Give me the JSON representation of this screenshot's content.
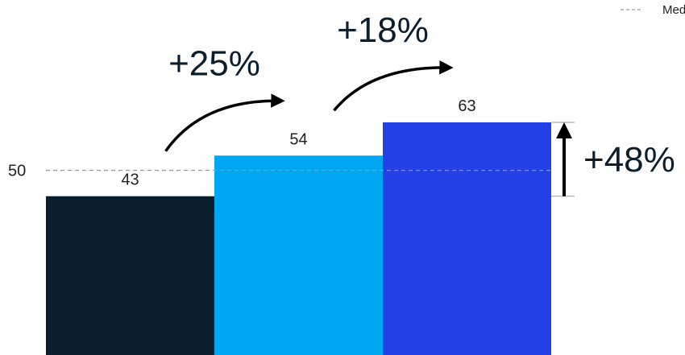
{
  "chart_data": {
    "type": "bar",
    "categories": [
      "",
      "",
      ""
    ],
    "values": [
      43,
      54,
      63
    ],
    "colors": [
      "#0b1e2d",
      "#00a6ef",
      "#2240e6"
    ],
    "reference_line": {
      "value": 50,
      "label": "50",
      "style": "dashed",
      "color": "#9a9a9a"
    },
    "changes": [
      {
        "from_index": 0,
        "to_index": 1,
        "label": "+25%"
      },
      {
        "from_index": 1,
        "to_index": 2,
        "label": "+18%"
      }
    ],
    "total_change": {
      "label": "+48%",
      "from_value": 43,
      "to_value": 63
    },
    "legend": {
      "entries": [
        "Medi"
      ],
      "position": "top-right",
      "style": "dashed"
    },
    "ylim": [
      0,
      63
    ],
    "title": "",
    "xlabel": "",
    "ylabel": "",
    "grid": false
  }
}
